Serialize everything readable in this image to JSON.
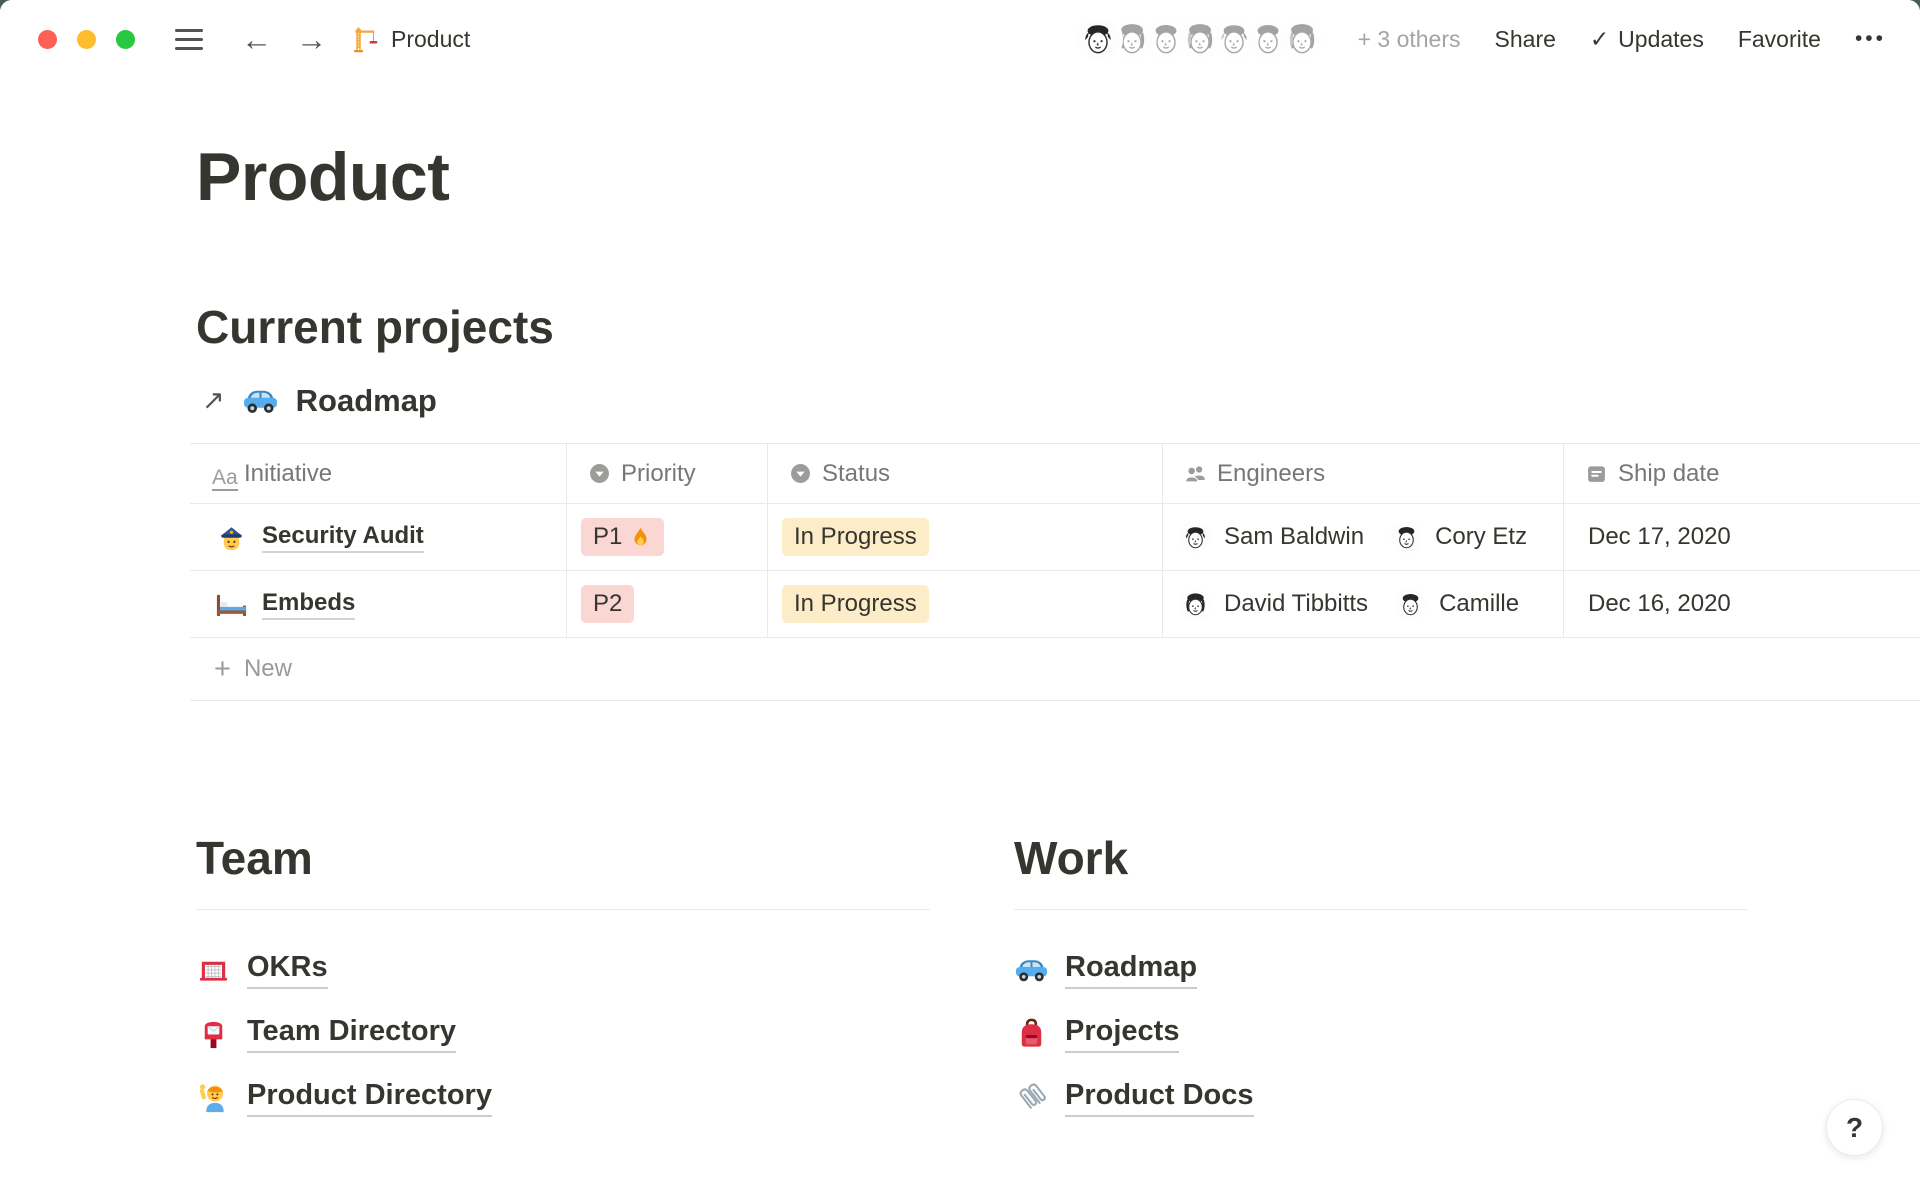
{
  "icons_glyphs": {
    "back": "←",
    "forward": "→",
    "check": "✓",
    "more": "•••",
    "plus": "+",
    "external": "↗",
    "help": "?"
  },
  "topbar": {
    "title": "Product",
    "others": "+ 3 others",
    "share": "Share",
    "updates": "Updates",
    "favorite": "Favorite",
    "avatar_count": 7
  },
  "page": {
    "title": "Product"
  },
  "projects": {
    "heading": "Current projects",
    "link": {
      "icon": "blue-car",
      "label": "Roadmap"
    },
    "table": {
      "columns": [
        {
          "icon": "text",
          "label": "Initiative"
        },
        {
          "icon": "select",
          "label": "Priority"
        },
        {
          "icon": "select",
          "label": "Status"
        },
        {
          "icon": "people",
          "label": "Engineers"
        },
        {
          "icon": "calendar",
          "label": "Ship date"
        }
      ],
      "rows": [
        {
          "icon": "police-officer",
          "initiative": "Security Audit",
          "priority": "P1",
          "priority_has_fire": true,
          "status": "In Progress",
          "engineers": [
            {
              "name": "Sam Baldwin"
            },
            {
              "name": "Cory Etz"
            }
          ],
          "ship_date": "Dec 17, 2020"
        },
        {
          "icon": "bed",
          "initiative": "Embeds",
          "priority": "P2",
          "priority_has_fire": false,
          "status": "In Progress",
          "engineers": [
            {
              "name": "David Tibbitts"
            },
            {
              "name": "Camille"
            }
          ],
          "ship_date": "Dec 16, 2020"
        }
      ],
      "new_label": "New"
    }
  },
  "sections": [
    {
      "heading": "Team",
      "links": [
        {
          "icon": "goal-net",
          "label": "OKRs"
        },
        {
          "icon": "postbox",
          "label": "Team Directory"
        },
        {
          "icon": "person-raising-hand",
          "label": "Product Directory"
        }
      ]
    },
    {
      "heading": "Work",
      "links": [
        {
          "icon": "blue-car",
          "label": "Roadmap"
        },
        {
          "icon": "backpack",
          "label": "Projects"
        },
        {
          "icon": "paperclips",
          "label": "Product Docs"
        }
      ]
    }
  ],
  "colors": {
    "text": "#37352f",
    "muted": "#9b9a97",
    "border": "#e9e9e7",
    "red_badge_bg": "#fbd7d4",
    "yellow_badge_bg": "#fdecc8"
  }
}
